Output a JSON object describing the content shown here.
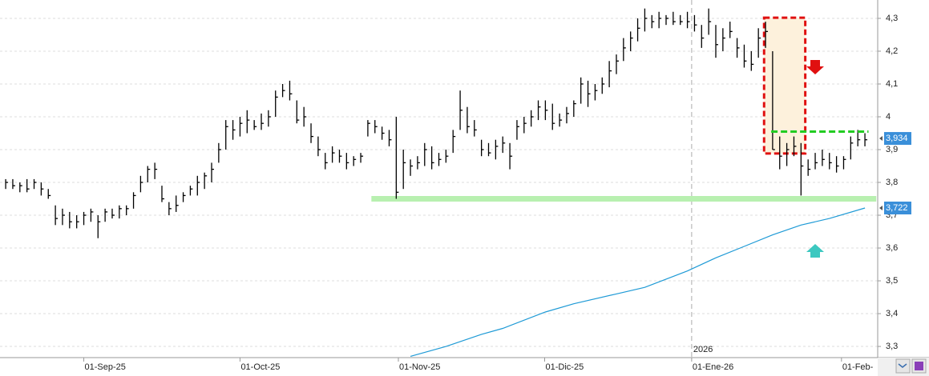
{
  "chart_data": {
    "type": "ohlc",
    "xlim": [
      -0.8,
      122.8
    ],
    "ylim": [
      3.266,
      4.356
    ],
    "grid": true,
    "bar_color": "#000000",
    "ma_color": "#1e9ad6",
    "xticks": [
      {
        "value": 11,
        "label": "01-Sep-25"
      },
      {
        "value": 33,
        "label": "01-Oct-25"
      },
      {
        "value": 55.3,
        "label": "01-Nov-25"
      },
      {
        "value": 75.9,
        "label": "01-Dic-25"
      },
      {
        "value": 96.6,
        "label": "01-Ene-26"
      },
      {
        "value": 117.7,
        "label": "01-Feb-"
      }
    ],
    "year_label": "2026",
    "yticks": [
      {
        "value": 3.3,
        "label": "3,3"
      },
      {
        "value": 3.4,
        "label": "3,4"
      },
      {
        "value": 3.5,
        "label": "3,5"
      },
      {
        "value": 3.6,
        "label": "3,6"
      },
      {
        "value": 3.7,
        "label": "3,7"
      },
      {
        "value": 3.8,
        "label": "3,8"
      },
      {
        "value": 3.9,
        "label": "3,9"
      },
      {
        "value": 4,
        "label": "4"
      },
      {
        "value": 4.1,
        "label": "4,1"
      },
      {
        "value": 4.2,
        "label": "4,2"
      },
      {
        "value": 4.3,
        "label": "4,3"
      }
    ],
    "bars": {
      "high": [
        3.81,
        3.81,
        3.8,
        3.81,
        3.81,
        3.8,
        3.78,
        3.73,
        3.72,
        3.71,
        3.7,
        3.71,
        3.72,
        3.7,
        3.72,
        3.72,
        3.73,
        3.73,
        3.77,
        3.82,
        3.85,
        3.86,
        3.79,
        3.74,
        3.76,
        3.77,
        3.79,
        3.82,
        3.83,
        3.86,
        3.92,
        3.99,
        3.99,
        4.0,
        4.02,
        3.99,
        4.01,
        4.02,
        4.08,
        4.1,
        4.11,
        4.05,
        4.03,
        3.98,
        3.94,
        3.89,
        3.91,
        3.9,
        3.89,
        3.88,
        3.89,
        3.99,
        3.99,
        3.97,
        3.96,
        4.0,
        3.9,
        3.87,
        3.88,
        3.92,
        3.91,
        3.89,
        3.9,
        3.96,
        4.08,
        4.03,
        3.99,
        3.93,
        3.92,
        3.93,
        3.94,
        3.92,
        3.99,
        4.0,
        4.02,
        4.05,
        4.05,
        4.04,
        4.01,
        4.03,
        4.05,
        4.12,
        4.11,
        4.1,
        4.12,
        4.17,
        4.19,
        4.24,
        4.26,
        4.3,
        4.33,
        4.31,
        4.32,
        4.31,
        4.32,
        4.31,
        4.32,
        4.31,
        4.28,
        4.33,
        4.28,
        4.27,
        4.29,
        4.24,
        4.22,
        4.2,
        4.27,
        4.29,
        4.2,
        3.94,
        3.92,
        3.94,
        3.92,
        3.87,
        3.89,
        3.9,
        3.89,
        3.88,
        3.88,
        3.94,
        3.96,
        3.95
      ],
      "low": [
        3.78,
        3.78,
        3.77,
        3.77,
        3.78,
        3.76,
        3.75,
        3.67,
        3.67,
        3.66,
        3.66,
        3.67,
        3.68,
        3.63,
        3.68,
        3.69,
        3.69,
        3.7,
        3.72,
        3.77,
        3.8,
        3.81,
        3.74,
        3.7,
        3.71,
        3.74,
        3.76,
        3.76,
        3.78,
        3.8,
        3.86,
        3.9,
        3.93,
        3.94,
        3.95,
        3.96,
        3.96,
        3.97,
        4.0,
        4.06,
        4.05,
        3.98,
        3.97,
        3.92,
        3.88,
        3.84,
        3.86,
        3.86,
        3.84,
        3.85,
        3.86,
        3.94,
        3.95,
        3.93,
        3.91,
        3.75,
        3.78,
        3.82,
        3.84,
        3.85,
        3.84,
        3.85,
        3.86,
        3.89,
        3.96,
        3.95,
        3.94,
        3.88,
        3.88,
        3.87,
        3.89,
        3.84,
        3.93,
        3.95,
        3.97,
        3.99,
        3.99,
        3.96,
        3.97,
        3.98,
        4.0,
        4.04,
        4.03,
        4.05,
        4.07,
        4.09,
        4.13,
        4.17,
        4.2,
        4.23,
        4.26,
        4.27,
        4.27,
        4.28,
        4.28,
        4.28,
        4.27,
        4.26,
        4.21,
        4.25,
        4.18,
        4.2,
        4.24,
        4.18,
        4.15,
        4.14,
        4.18,
        4.21,
        3.9,
        3.84,
        3.85,
        3.88,
        3.76,
        3.82,
        3.84,
        3.85,
        3.84,
        3.83,
        3.84,
        3.87,
        3.91,
        3.91
      ],
      "close": [
        3.8,
        3.79,
        3.79,
        3.78,
        3.8,
        3.78,
        3.76,
        3.69,
        3.7,
        3.68,
        3.68,
        3.7,
        3.71,
        3.68,
        3.71,
        3.7,
        3.72,
        3.72,
        3.76,
        3.8,
        3.84,
        3.84,
        3.75,
        3.72,
        3.73,
        3.76,
        3.78,
        3.8,
        3.82,
        3.84,
        3.9,
        3.97,
        3.96,
        3.98,
        3.99,
        3.97,
        3.98,
        4.0,
        4.06,
        4.08,
        4.07,
        3.99,
        4.0,
        3.94,
        3.9,
        3.86,
        3.89,
        3.88,
        3.86,
        3.87,
        3.88,
        3.98,
        3.97,
        3.95,
        3.93,
        3.77,
        3.86,
        3.85,
        3.86,
        3.9,
        3.86,
        3.87,
        3.88,
        3.94,
        4.02,
        3.97,
        3.96,
        3.9,
        3.89,
        3.91,
        3.92,
        3.88,
        3.97,
        3.98,
        4.0,
        4.03,
        4.02,
        3.98,
        3.99,
        4.01,
        4.04,
        4.1,
        4.07,
        4.08,
        4.1,
        4.14,
        4.17,
        4.21,
        4.24,
        4.27,
        4.3,
        4.29,
        4.3,
        4.3,
        4.29,
        4.29,
        4.29,
        4.28,
        4.24,
        4.29,
        4.22,
        4.24,
        4.26,
        4.21,
        4.17,
        4.16,
        4.24,
        4.26,
        3.9,
        3.88,
        3.9,
        3.91,
        3.85,
        3.84,
        3.86,
        3.87,
        3.86,
        3.85,
        3.87,
        3.92,
        3.93,
        3.93
      ]
    },
    "moving_average": {
      "x": [
        57,
        62,
        67,
        70,
        76,
        80,
        86,
        90,
        96,
        100,
        104,
        108,
        112,
        116,
        121
      ],
      "values": [
        3.27,
        3.3,
        3.337,
        3.355,
        3.405,
        3.43,
        3.46,
        3.48,
        3.53,
        3.57,
        3.605,
        3.64,
        3.67,
        3.69,
        3.722
      ]
    },
    "support": {
      "value": 3.75,
      "x": [
        51.5,
        122.6
      ],
      "color": "#b8f0b0"
    },
    "resistance": {
      "value": 3.955,
      "x": [
        107.8,
        121.5
      ],
      "color": "#22cc22"
    },
    "box": {
      "x": [
        106.8,
        112.6
      ],
      "top": 4.302,
      "bottom": 3.888,
      "color": "#e01010"
    },
    "price_tags": [
      {
        "value": 3.934,
        "label": "3,934"
      },
      {
        "value": 3.722,
        "label": "3,722"
      }
    ]
  }
}
